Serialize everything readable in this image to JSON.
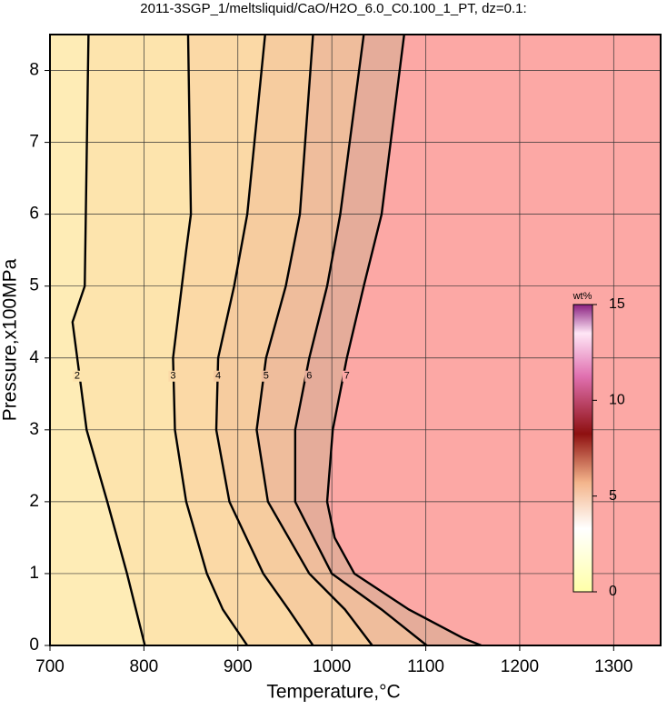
{
  "chart_data": {
    "type": "contour",
    "title": "2011-3SGP_1/meltsliquid/CaO/H2O_6.0_C0.100_1_PT, dz=0.1:",
    "xlabel": "Temperature,°C",
    "ylabel": "Pressure,x100MPa",
    "xlim": [
      700,
      1350
    ],
    "ylim": [
      0,
      8.5
    ],
    "xticks": [
      700,
      800,
      900,
      1000,
      1100,
      1200,
      1300
    ],
    "yticks": [
      0,
      1,
      2,
      3,
      4,
      5,
      6,
      7,
      8
    ],
    "grid": true,
    "background": "#feecb6",
    "series": [
      {
        "name": "2",
        "color": "#fde4ad",
        "x": [
          741,
          737,
          724,
          729,
          739,
          761,
          782,
          801
        ],
        "y": [
          8.5,
          5.0,
          4.5,
          4.0,
          3.0,
          2.0,
          1.0,
          0
        ]
      },
      {
        "name": "3",
        "color": "#fbd9a6",
        "x": [
          847,
          850,
          845,
          831,
          833,
          845,
          867,
          884,
          910
        ],
        "y": [
          8.5,
          6.0,
          5.5,
          4.0,
          3.0,
          2.0,
          1.0,
          0.5,
          0
        ]
      },
      {
        "name": "4",
        "color": "#f6cc9f",
        "x": [
          929,
          910,
          896,
          879,
          877,
          891,
          927,
          954,
          980
        ],
        "y": [
          8.5,
          6.0,
          5.0,
          4.0,
          3.0,
          2.0,
          1.0,
          0.5,
          0
        ]
      },
      {
        "name": "5",
        "color": "#efbd9c",
        "x": [
          980,
          966,
          951,
          930,
          920,
          932,
          976,
          1014,
          1043
        ],
        "y": [
          8.5,
          6.0,
          5.0,
          4.0,
          3.0,
          2.0,
          1.0,
          0.5,
          0
        ]
      },
      {
        "name": "6",
        "color": "#e5ac9a",
        "x": [
          1034,
          1009,
          995,
          976,
          961,
          961,
          1000,
          1053,
          1101
        ],
        "y": [
          8.5,
          6.0,
          5.0,
          4.0,
          3.0,
          2.0,
          1.0,
          0.5,
          0
        ]
      },
      {
        "name": "7",
        "color": "#fca8a5",
        "x": [
          1077,
          1053,
          1034,
          1016,
          1001,
          995,
          1003,
          1024,
          1082,
          1140,
          1159
        ],
        "y": [
          8.5,
          6.0,
          5.0,
          4.0,
          3.0,
          2.0,
          1.5,
          1.0,
          0.5,
          0.1,
          0
        ]
      }
    ],
    "colorbar": {
      "label": "wt%",
      "lim": [
        0,
        15
      ],
      "ticks": [
        0,
        5,
        10,
        15
      ]
    }
  }
}
